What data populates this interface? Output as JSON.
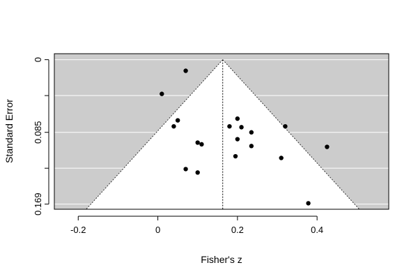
{
  "chart_data": {
    "type": "scatter",
    "variant": "funnel",
    "title": "",
    "xlabel": "Fisher's z",
    "ylabel": "Standard Error",
    "xlim": [
      -0.26,
      0.58
    ],
    "ylim": [
      0.175,
      -0.007
    ],
    "y_reversed": true,
    "x_ticks": [
      -0.2,
      0,
      0.2,
      0.4
    ],
    "x_tick_labels": [
      "-0.2",
      "0",
      "0.2",
      "0.4"
    ],
    "y_ticks": [
      0,
      0.042,
      0.085,
      0.127,
      0.169
    ],
    "y_tick_labels": [
      "0",
      "",
      "0.085",
      "",
      "0.169"
    ],
    "grid": true,
    "summary_estimate": 0.163,
    "funnel_multiplier": 1.96,
    "colors": {
      "background": "#cccccc",
      "funnel": "#ffffff",
      "grid": "#ffffff",
      "points": "#000000",
      "border": "#000000"
    },
    "points": [
      {
        "x": 0.07,
        "y": 0.013
      },
      {
        "x": 0.01,
        "y": 0.04
      },
      {
        "x": 0.05,
        "y": 0.071
      },
      {
        "x": 0.04,
        "y": 0.078
      },
      {
        "x": 0.1,
        "y": 0.097
      },
      {
        "x": 0.11,
        "y": 0.099
      },
      {
        "x": 0.07,
        "y": 0.128
      },
      {
        "x": 0.1,
        "y": 0.132
      },
      {
        "x": 0.2,
        "y": 0.069
      },
      {
        "x": 0.18,
        "y": 0.078
      },
      {
        "x": 0.21,
        "y": 0.079
      },
      {
        "x": 0.235,
        "y": 0.085
      },
      {
        "x": 0.2,
        "y": 0.093
      },
      {
        "x": 0.235,
        "y": 0.101
      },
      {
        "x": 0.195,
        "y": 0.113
      },
      {
        "x": 0.32,
        "y": 0.078
      },
      {
        "x": 0.31,
        "y": 0.115
      },
      {
        "x": 0.425,
        "y": 0.102
      },
      {
        "x": 0.378,
        "y": 0.168
      }
    ]
  }
}
